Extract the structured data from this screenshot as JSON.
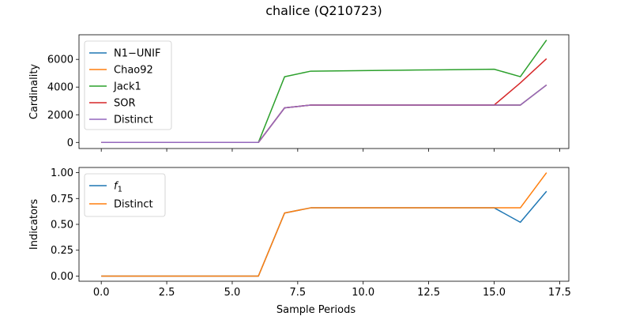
{
  "figure": {
    "title": "chalice (Q210723)",
    "xlabel": "Sample Periods"
  },
  "chart_data": [
    {
      "type": "line",
      "title": "",
      "xlabel": "",
      "ylabel": "Cardinality",
      "xlim": [
        -0.85,
        17.85
      ],
      "ylim": [
        -440,
        7780
      ],
      "x_ticks": [
        0,
        2.5,
        5,
        7.5,
        10,
        12.5,
        15,
        17.5
      ],
      "x_tick_labels_shown": false,
      "y_ticks": [
        0,
        2000,
        4000,
        6000
      ],
      "y_tick_labels": [
        "0",
        "2000",
        "4000",
        "6000"
      ],
      "grid": false,
      "legend_position": "top-left",
      "x": [
        0,
        1,
        2,
        3,
        4,
        5,
        6,
        7,
        8,
        9,
        10,
        11,
        12,
        13,
        14,
        15,
        16,
        17
      ],
      "series": [
        {
          "name": "N1−UNIF",
          "color": "#1f77b4",
          "values": [
            0,
            0,
            0,
            0,
            0,
            0,
            0,
            2500,
            2700,
            2700,
            2700,
            2700,
            2700,
            2700,
            2700,
            2700,
            2700,
            4150
          ]
        },
        {
          "name": "Chao92",
          "color": "#ff7f0e",
          "values": [
            0,
            0,
            0,
            0,
            0,
            0,
            0,
            2500,
            2700,
            2700,
            2700,
            2700,
            2700,
            2700,
            2700,
            2700,
            2700,
            4150
          ]
        },
        {
          "name": "Jack1",
          "color": "#2ca02c",
          "values": [
            0,
            0,
            0,
            0,
            0,
            0,
            0,
            4750,
            5150,
            5170,
            5190,
            5210,
            5230,
            5250,
            5270,
            5290,
            4750,
            7400
          ]
        },
        {
          "name": "SOR",
          "color": "#d62728",
          "values": [
            0,
            0,
            0,
            0,
            0,
            0,
            0,
            2500,
            2700,
            2700,
            2700,
            2700,
            2700,
            2700,
            2700,
            2700,
            4300,
            6050
          ]
        },
        {
          "name": "Distinct",
          "color": "#9467bd",
          "values": [
            0,
            0,
            0,
            0,
            0,
            0,
            0,
            2500,
            2700,
            2700,
            2700,
            2700,
            2700,
            2700,
            2700,
            2700,
            2700,
            4150
          ]
        }
      ]
    },
    {
      "type": "line",
      "title": "",
      "xlabel": "Sample Periods",
      "ylabel": "Indicators",
      "xlim": [
        -0.85,
        17.85
      ],
      "ylim": [
        -0.05,
        1.05
      ],
      "x_ticks": [
        0,
        2.5,
        5,
        7.5,
        10,
        12.5,
        15,
        17.5
      ],
      "x_tick_labels": [
        "0.0",
        "2.5",
        "5.0",
        "7.5",
        "10.0",
        "12.5",
        "15.0",
        "17.5"
      ],
      "y_ticks": [
        0,
        0.25,
        0.5,
        0.75,
        1.0
      ],
      "y_tick_labels": [
        "0.00",
        "0.25",
        "0.50",
        "0.75",
        "1.00"
      ],
      "grid": false,
      "legend_position": "top-left",
      "x": [
        0,
        1,
        2,
        3,
        4,
        5,
        6,
        7,
        8,
        9,
        10,
        11,
        12,
        13,
        14,
        15,
        16,
        17
      ],
      "series": [
        {
          "name": "f₁",
          "color": "#1f77b4",
          "values": [
            0,
            0,
            0,
            0,
            0,
            0,
            0,
            0.61,
            0.66,
            0.66,
            0.66,
            0.66,
            0.66,
            0.66,
            0.66,
            0.66,
            0.52,
            0.82
          ]
        },
        {
          "name": "Distinct",
          "color": "#ff7f0e",
          "values": [
            0,
            0,
            0,
            0,
            0,
            0,
            0,
            0.61,
            0.66,
            0.66,
            0.66,
            0.66,
            0.66,
            0.66,
            0.66,
            0.66,
            0.66,
            1.0
          ]
        }
      ]
    }
  ]
}
